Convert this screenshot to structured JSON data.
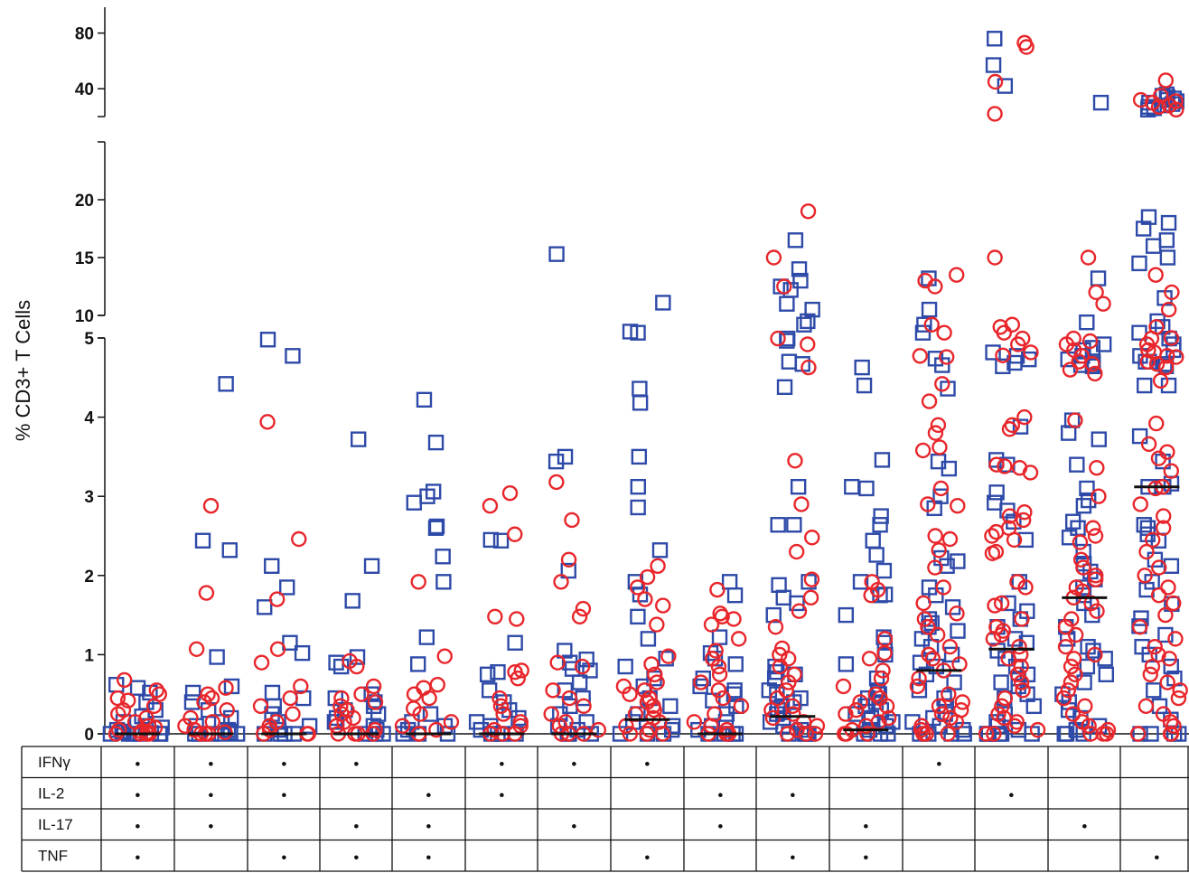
{
  "chart_data": {
    "type": "scatter",
    "ylabel": "% CD3+ T Cells",
    "y_segments": [
      {
        "range": [
          0,
          5
        ],
        "ticks": [
          0,
          1,
          2,
          3,
          4,
          5
        ]
      },
      {
        "range": [
          5,
          20
        ],
        "ticks": [
          10,
          15,
          20
        ]
      },
      {
        "range": [
          20,
          100
        ],
        "ticks": [
          40,
          80
        ]
      }
    ],
    "row_labels": [
      "IFNγ",
      "IL-2",
      "IL-17",
      "TNF"
    ],
    "marker_key": "•",
    "marker_colors": {
      "circle": "#e8262b",
      "square": "#2e4aa8",
      "median": "#111111"
    },
    "categories": [
      {
        "markers": [
          1,
          1,
          1,
          1
        ],
        "median": 0,
        "circles": [
          0.55,
          0.5,
          0.42,
          0.35,
          0.3,
          0.25,
          0.2,
          0.15,
          0.1,
          0.08,
          0.05,
          0.03,
          0.02,
          0.01,
          0,
          0,
          0,
          0,
          0.68,
          0.45
        ],
        "squares": [
          0.62,
          0.58,
          0.52,
          0.4,
          0.3,
          0.22,
          0.15,
          0.1,
          0.08,
          0.05,
          0.03,
          0.02,
          0.01,
          0,
          0,
          0,
          0,
          0,
          0
        ]
      },
      {
        "markers": [
          1,
          1,
          1,
          0
        ],
        "median": 0,
        "circles": [
          2.88,
          1.78,
          1.07,
          0.58,
          0.5,
          0.45,
          0.4,
          0.3,
          0.2,
          0.15,
          0.1,
          0.05,
          0.02,
          0,
          0,
          0
        ],
        "squares": [
          4.42,
          2.44,
          2.32,
          0.97,
          0.6,
          0.52,
          0.4,
          0.3,
          0.2,
          0.15,
          0.1,
          0.05,
          0.02,
          0,
          0,
          0,
          0,
          0
        ]
      },
      {
        "markers": [
          1,
          1,
          0,
          1
        ],
        "median": 0,
        "circles": [
          3.94,
          2.46,
          1.7,
          1.07,
          0.9,
          0.6,
          0.45,
          0.35,
          0.25,
          0.15,
          0.1,
          0.05,
          0,
          0,
          0
        ],
        "squares": [
          6.5,
          4.98,
          2.12,
          1.85,
          1.6,
          1.15,
          1.02,
          0.52,
          0.45,
          0.35,
          0.25,
          0.15,
          0.1,
          0.05,
          0,
          0,
          0,
          0
        ]
      },
      {
        "markers": [
          1,
          0,
          1,
          1
        ],
        "median": 0,
        "circles": [
          0.92,
          0.85,
          0.6,
          0.5,
          0.45,
          0.4,
          0.35,
          0.3,
          0.25,
          0.2,
          0.15,
          0.1,
          0.05,
          0,
          0,
          0,
          0
        ],
        "squares": [
          3.72,
          2.12,
          1.68,
          0.97,
          0.9,
          0.85,
          0.5,
          0.45,
          0.4,
          0.35,
          0.3,
          0.25,
          0.2,
          0.15,
          0.1,
          0.05,
          0,
          0,
          0
        ]
      },
      {
        "markers": [
          0,
          1,
          1,
          1
        ],
        "median": 0,
        "circles": [
          1.92,
          0.98,
          0.62,
          0.58,
          0.5,
          0.45,
          0.32,
          0.25,
          0.15,
          0.1,
          0.05,
          0,
          0
        ],
        "squares": [
          4.22,
          3.68,
          3.06,
          3.0,
          2.92,
          2.62,
          2.6,
          2.24,
          1.92,
          1.22,
          0.88,
          0.25,
          0.15,
          0.1,
          0.05,
          0,
          0,
          0
        ]
      },
      {
        "markers": [
          1,
          1,
          0,
          0
        ],
        "median": 0,
        "circles": [
          3.04,
          2.88,
          2.52,
          1.48,
          1.45,
          0.8,
          0.78,
          0.7,
          0.45,
          0.35,
          0.25,
          0.15,
          0.1,
          0.05,
          0,
          0,
          0
        ],
        "squares": [
          2.45,
          2.44,
          1.15,
          0.78,
          0.75,
          0.55,
          0.4,
          0.3,
          0.2,
          0.15,
          0.1,
          0.05,
          0,
          0,
          0,
          0
        ]
      },
      {
        "markers": [
          1,
          0,
          1,
          0
        ],
        "median": 0,
        "circles": [
          3.18,
          2.7,
          2.2,
          1.92,
          1.58,
          1.48,
          0.9,
          0.85,
          0.55,
          0.45,
          0.35,
          0.25,
          0.15,
          0.1,
          0.05,
          0,
          0,
          0
        ],
        "squares": [
          15.3,
          3.5,
          3.44,
          2.06,
          1.05,
          0.94,
          0.9,
          0.82,
          0.8,
          0.65,
          0.55,
          0.45,
          0.35,
          0.25,
          0.15,
          0.1,
          0.05,
          0,
          0,
          0
        ]
      },
      {
        "markers": [
          1,
          0,
          0,
          1
        ],
        "median": 0.18,
        "circles": [
          2.12,
          1.98,
          1.85,
          1.7,
          1.62,
          1.38,
          0.98,
          0.88,
          0.75,
          0.65,
          0.6,
          0.55,
          0.5,
          0.45,
          0.4,
          0.35,
          0.3,
          0.25,
          0.2,
          0.15,
          0.1,
          0.05,
          0,
          0,
          0
        ],
        "squares": [
          11.1,
          8.6,
          8.5,
          4.36,
          4.18,
          3.5,
          3.12,
          2.86,
          2.32,
          1.92,
          1.76,
          1.48,
          1.2,
          0.95,
          0.85,
          0.7,
          0.6,
          0.45,
          0.35,
          0.25,
          0.15,
          0.1,
          0.05,
          0,
          0,
          0
        ]
      },
      {
        "markers": [
          0,
          1,
          1,
          0
        ],
        "median": 0,
        "circles": [
          1.82,
          1.52,
          1.48,
          1.45,
          1.38,
          1.2,
          1.05,
          0.95,
          0.85,
          0.75,
          0.65,
          0.55,
          0.45,
          0.35,
          0.25,
          0.15,
          0.1,
          0.05,
          0,
          0,
          0
        ],
        "squares": [
          1.92,
          1.75,
          1.22,
          1.02,
          0.95,
          0.88,
          0.7,
          0.6,
          0.55,
          0.5,
          0.42,
          0.35,
          0.25,
          0.15,
          0.1,
          0.05,
          0,
          0,
          0,
          0
        ]
      },
      {
        "markers": [
          0,
          1,
          0,
          1
        ],
        "median": 0.22,
        "circles": [
          19.0,
          15.0,
          12.5,
          8.0,
          7.5,
          5.5,
          3.45,
          2.9,
          2.48,
          2.3,
          1.95,
          1.72,
          1.55,
          1.35,
          1.08,
          1.0,
          0.95,
          0.85,
          0.75,
          0.65,
          0.55,
          0.45,
          0.35,
          0.3,
          0.25,
          0.2,
          0.15,
          0.1,
          0.05,
          0,
          0,
          0
        ],
        "squares": [
          16.5,
          14.0,
          13.0,
          12.5,
          12.2,
          11.0,
          10.5,
          9.5,
          9.2,
          8.0,
          7.8,
          6.0,
          5.8,
          4.38,
          3.12,
          2.64,
          2.64,
          1.92,
          1.88,
          1.72,
          1.65,
          1.5,
          0.85,
          0.78,
          0.75,
          0.7,
          0.55,
          0.5,
          0.45,
          0.4,
          0.35,
          0.3,
          0.25,
          0.2,
          0.15,
          0.1,
          0.05,
          0,
          0,
          0,
          0
        ]
      },
      {
        "markers": [
          0,
          0,
          1,
          1
        ],
        "median": 0.05,
        "circles": [
          1.92,
          1.82,
          1.75,
          1.2,
          1.02,
          0.95,
          0.8,
          0.7,
          0.6,
          0.5,
          0.45,
          0.4,
          0.35,
          0.3,
          0.25,
          0.2,
          0.15,
          0.1,
          0.05,
          0,
          0,
          0
        ],
        "squares": [
          5.5,
          4.4,
          3.46,
          3.12,
          3.1,
          2.75,
          2.64,
          2.44,
          2.26,
          2.06,
          1.92,
          1.76,
          1.75,
          1.5,
          1.22,
          1.15,
          1.0,
          0.88,
          0.7,
          0.55,
          0.5,
          0.45,
          0.4,
          0.35,
          0.3,
          0.25,
          0.2,
          0.15,
          0.1,
          0.05,
          0,
          0,
          0
        ]
      },
      {
        "markers": [
          1,
          0,
          0,
          0
        ],
        "median": 0.8,
        "circles": [
          13.5,
          13.0,
          12.5,
          9.2,
          8.5,
          6.5,
          4.76,
          4.42,
          4.2,
          3.9,
          3.8,
          3.62,
          3.58,
          3.1,
          2.9,
          2.88,
          2.5,
          2.46,
          2.32,
          2.1,
          1.85,
          1.65,
          1.52,
          1.45,
          1.35,
          1.25,
          1.1,
          1.0,
          0.95,
          0.88,
          0.8,
          0.7,
          0.6,
          0.5,
          0.4,
          0.35,
          0.3,
          0.25,
          0.2,
          0.15,
          0.1,
          0.05,
          0,
          0,
          0
        ],
        "squares": [
          13.2,
          10.5,
          9.2,
          8.5,
          5.7,
          4.74,
          4.36,
          3.44,
          3.35,
          3.0,
          2.85,
          2.22,
          2.18,
          2.12,
          1.85,
          1.75,
          1.6,
          1.45,
          1.4,
          1.35,
          1.3,
          1.2,
          1.1,
          1.0,
          0.9,
          0.85,
          0.75,
          0.65,
          0.55,
          0.45,
          0.35,
          0.25,
          0.2,
          0.15,
          0.1,
          0.05,
          0,
          0,
          0,
          0
        ]
      },
      {
        "markers": [
          0,
          1,
          0,
          0
        ],
        "median": 1.07,
        "circles": [
          73,
          70,
          45,
          22,
          15,
          9.2,
          9.0,
          8.5,
          8.0,
          7.5,
          6.8,
          4.78,
          4.0,
          3.9,
          3.85,
          3.4,
          3.38,
          3.36,
          3.3,
          2.8,
          2.75,
          2.7,
          2.6,
          2.55,
          2.5,
          2.45,
          2.3,
          2.28,
          1.92,
          1.85,
          1.65,
          1.62,
          1.45,
          1.35,
          1.3,
          1.25,
          1.2,
          1.1,
          1.0,
          0.95,
          0.85,
          0.75,
          0.65,
          0.55,
          0.45,
          0.35,
          0.25,
          0.2,
          0.15,
          0.1,
          0.05,
          0,
          0
        ],
        "squares": [
          76,
          57,
          42,
          6.8,
          6.5,
          6.2,
          5.9,
          5.6,
          3.88,
          3.46,
          3.4,
          3.05,
          2.92,
          2.82,
          2.68,
          2.45,
          1.92,
          1.65,
          1.55,
          1.45,
          1.35,
          1.2,
          1.15,
          1.05,
          0.95,
          0.85,
          0.75,
          0.7,
          0.65,
          0.6,
          0.5,
          0.45,
          0.35,
          0.25,
          0.15,
          0.1,
          0.05,
          0,
          0,
          0,
          0,
          0,
          0
        ]
      },
      {
        "markers": [
          0,
          0,
          1,
          0
        ],
        "median": 1.72,
        "circles": [
          15.0,
          12.0,
          11.0,
          8.0,
          7.5,
          7.0,
          6.5,
          6.0,
          5.8,
          4.96,
          4.6,
          4.55,
          3.96,
          3.36,
          3.0,
          2.6,
          2.5,
          2.42,
          2.2,
          2.1,
          2.0,
          1.95,
          1.85,
          1.8,
          1.72,
          1.65,
          1.55,
          1.45,
          1.35,
          1.25,
          1.1,
          1.0,
          0.95,
          0.85,
          0.75,
          0.65,
          0.55,
          0.45,
          0.35,
          0.25,
          0.15,
          0.1,
          0.05,
          0,
          0,
          0
        ],
        "squares": [
          30,
          13.2,
          9.4,
          7.5,
          7.2,
          7.0,
          6.5,
          6.2,
          6.0,
          5.8,
          5.7,
          5.6,
          3.96,
          3.8,
          3.72,
          3.4,
          3.1,
          2.95,
          2.88,
          2.68,
          2.6,
          2.48,
          2.3,
          2.15,
          2.05,
          1.95,
          1.85,
          1.75,
          1.65,
          1.5,
          1.35,
          1.2,
          1.1,
          1.05,
          0.95,
          0.85,
          0.75,
          0.65,
          0.5,
          0.4,
          0.3,
          0.2,
          0.1,
          0.05,
          0,
          0,
          0
        ]
      },
      {
        "markers": [
          0,
          0,
          0,
          1
        ],
        "median": 3.12,
        "circles": [
          46,
          35,
          32,
          31,
          30,
          28,
          27,
          25,
          13.5,
          12.0,
          10.5,
          9.0,
          8.0,
          7.5,
          7.0,
          6.8,
          6.5,
          6.0,
          5.8,
          5.5,
          5.0,
          4.76,
          4.46,
          3.92,
          3.66,
          3.56,
          3.48,
          3.32,
          3.12,
          3.1,
          2.9,
          2.75,
          2.6,
          2.45,
          2.3,
          2.1,
          2.0,
          1.85,
          1.75,
          1.65,
          1.5,
          1.35,
          1.2,
          1.1,
          1.0,
          0.95,
          0.85,
          0.75,
          0.65,
          0.55,
          0.45,
          0.35,
          0.25,
          0.15,
          0.1,
          0,
          0,
          0,
          0
        ],
        "squares": [
          36,
          35,
          34,
          33,
          32,
          31,
          30,
          29,
          28,
          27,
          26,
          25,
          18.5,
          18.0,
          17.5,
          16.5,
          16.0,
          15.0,
          14.5,
          11.5,
          9.5,
          9.0,
          8.5,
          8.0,
          7.5,
          7.0,
          6.5,
          6.0,
          5.8,
          5.6,
          4.7,
          4.4,
          4.4,
          3.76,
          3.44,
          3.16,
          3.12,
          3.12,
          2.64,
          2.6,
          2.52,
          2.44,
          2.2,
          2.12,
          1.92,
          1.82,
          1.64,
          1.46,
          1.36,
          1.25,
          1.1,
          1.0,
          0.85,
          0.7,
          0.55,
          0.35,
          0.18,
          0,
          0,
          0,
          0
        ]
      }
    ]
  }
}
